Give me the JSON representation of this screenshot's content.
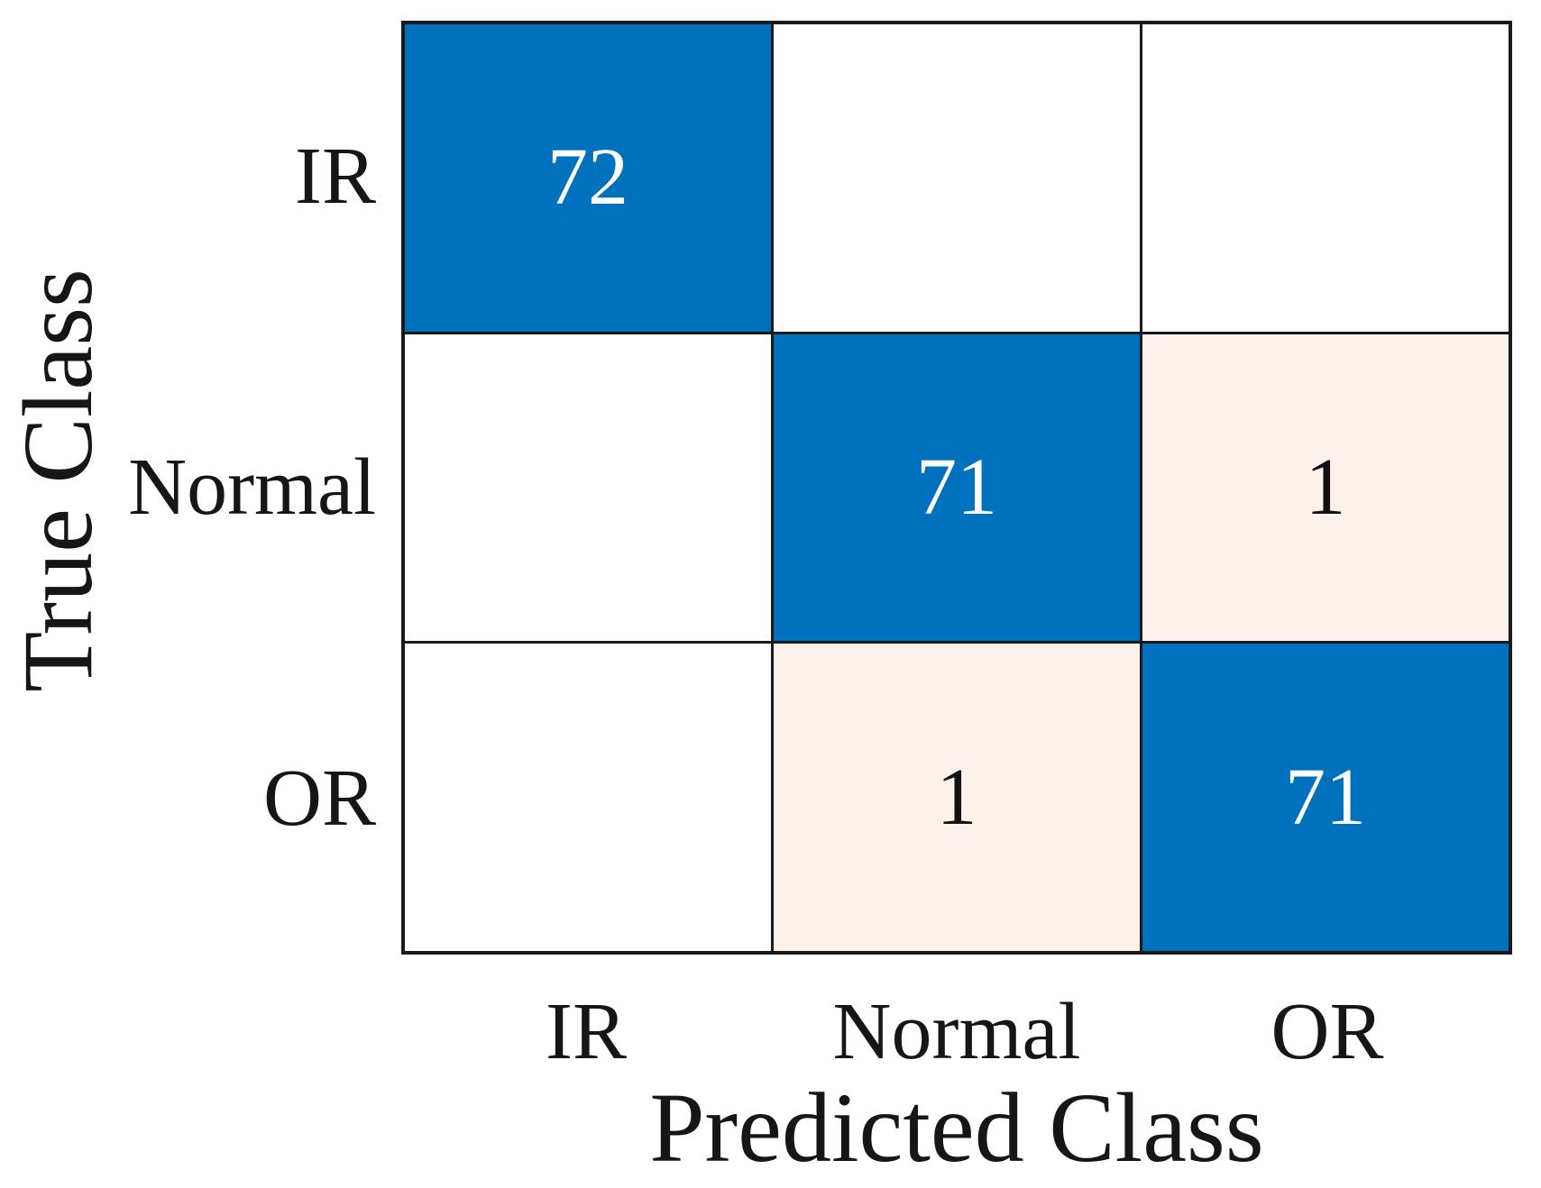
{
  "chart_data": {
    "type": "heatmap",
    "subtype": "confusion_matrix",
    "title": "",
    "xlabel": "Predicted Class",
    "ylabel": "True Class",
    "x_categories": [
      "IR",
      "Normal",
      "OR"
    ],
    "y_categories": [
      "IR",
      "Normal",
      "OR"
    ],
    "matrix": [
      [
        72,
        null,
        null
      ],
      [
        null,
        71,
        1
      ],
      [
        null,
        1,
        71
      ]
    ],
    "layout": {
      "grid": "on",
      "legend": "none",
      "colorbar": "none"
    },
    "colors": {
      "diagonal_fill": "#0072bd",
      "off_diagonal_fill": "#fdf1ec",
      "zero_cell_fill": "#ffffff",
      "grid_line": "#1a1a1a",
      "diagonal_text": "#ffffff",
      "off_diagonal_text": "#111111",
      "label_text": "#161616"
    }
  }
}
